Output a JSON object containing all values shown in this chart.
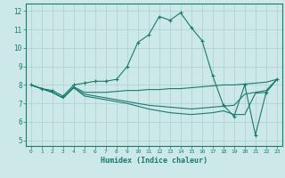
{
  "title": "",
  "xlabel": "Humidex (Indice chaleur)",
  "ylabel": "",
  "background_color": "#cce8e8",
  "grid_color": "#aacfcf",
  "line_color": "#1a7a6e",
  "xlim": [
    -0.5,
    23.5
  ],
  "ylim": [
    4.7,
    12.4
  ],
  "xticks": [
    0,
    1,
    2,
    3,
    4,
    5,
    6,
    7,
    8,
    9,
    10,
    11,
    12,
    13,
    14,
    15,
    16,
    17,
    18,
    19,
    20,
    21,
    22,
    23
  ],
  "yticks": [
    5,
    6,
    7,
    8,
    9,
    10,
    11,
    12
  ],
  "lines": [
    {
      "x": [
        0,
        1,
        2,
        3,
        4,
        5,
        6,
        7,
        8,
        9,
        10,
        11,
        12,
        13,
        14,
        15,
        16,
        17,
        18,
        19,
        20,
        21,
        22,
        23
      ],
      "y": [
        8.0,
        7.8,
        7.7,
        7.4,
        8.0,
        8.1,
        8.2,
        8.2,
        8.3,
        9.0,
        10.3,
        10.7,
        11.7,
        11.5,
        11.9,
        11.1,
        10.4,
        8.5,
        6.9,
        6.3,
        8.0,
        5.3,
        7.6,
        8.3
      ],
      "marker": "+"
    },
    {
      "x": [
        0,
        1,
        2,
        3,
        4,
        5,
        6,
        7,
        8,
        9,
        10,
        11,
        12,
        13,
        14,
        15,
        16,
        17,
        18,
        19,
        20,
        21,
        22,
        23
      ],
      "y": [
        8.0,
        7.8,
        7.6,
        7.3,
        7.9,
        7.6,
        7.6,
        7.6,
        7.65,
        7.7,
        7.7,
        7.75,
        7.75,
        7.8,
        7.8,
        7.85,
        7.9,
        7.95,
        8.0,
        8.0,
        8.05,
        8.1,
        8.15,
        8.3
      ],
      "marker": null
    },
    {
      "x": [
        0,
        1,
        2,
        3,
        4,
        5,
        6,
        7,
        8,
        9,
        10,
        11,
        12,
        13,
        14,
        15,
        16,
        17,
        18,
        19,
        20,
        21,
        22,
        23
      ],
      "y": [
        8.0,
        7.8,
        7.6,
        7.3,
        7.85,
        7.5,
        7.4,
        7.3,
        7.2,
        7.1,
        7.0,
        6.9,
        6.85,
        6.8,
        6.75,
        6.7,
        6.75,
        6.8,
        6.85,
        6.9,
        7.5,
        7.6,
        7.7,
        8.3
      ],
      "marker": null
    },
    {
      "x": [
        0,
        1,
        2,
        3,
        4,
        5,
        6,
        7,
        8,
        9,
        10,
        11,
        12,
        13,
        14,
        15,
        16,
        17,
        18,
        19,
        20,
        21,
        22,
        23
      ],
      "y": [
        8.0,
        7.8,
        7.6,
        7.3,
        7.85,
        7.4,
        7.3,
        7.2,
        7.1,
        7.0,
        6.85,
        6.7,
        6.6,
        6.5,
        6.45,
        6.4,
        6.45,
        6.5,
        6.6,
        6.4,
        6.4,
        7.55,
        7.6,
        8.3
      ],
      "marker": null
    }
  ]
}
